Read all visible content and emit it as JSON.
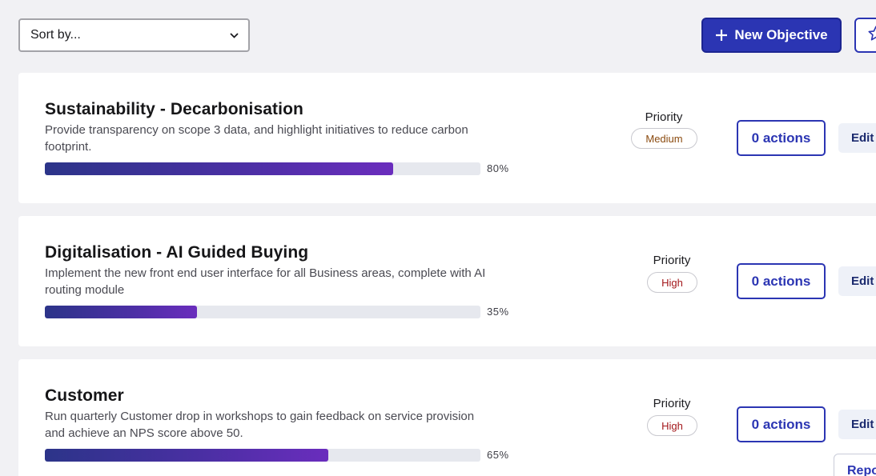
{
  "toolbar": {
    "sort_label": "Sort by...",
    "new_objective_label": "New Objective"
  },
  "objectives": [
    {
      "title": "Sustainability - Decarbonisation",
      "description": "Provide transparency on scope 3 data, and highlight initiatives to reduce carbon footprint.",
      "progress": 80,
      "progress_label": "80%",
      "priority_label": "Priority",
      "priority": "Medium",
      "actions_label": "0 actions",
      "edit_label": "Edit"
    },
    {
      "title": "Digitalisation - AI Guided Buying",
      "description": "Implement the new front end user interface for all Business areas, complete with AI routing module",
      "progress": 35,
      "progress_label": "35%",
      "priority_label": "Priority",
      "priority": "High",
      "actions_label": "0 actions",
      "edit_label": "Edit"
    },
    {
      "title": "Customer",
      "description": "Run quarterly Customer drop in workshops to gain feedback on service provision and achieve an NPS score above 50.",
      "progress": 65,
      "progress_label": "65%",
      "priority_label": "Priority",
      "priority": "High",
      "actions_label": "0 actions",
      "edit_label": "Edit"
    }
  ],
  "floating": {
    "report_label": "Report"
  },
  "colors": {
    "primary": "#2b35b3",
    "background": "#f1f1f4",
    "priority_medium": "#8a4a0f",
    "priority_high": "#a3171b"
  }
}
